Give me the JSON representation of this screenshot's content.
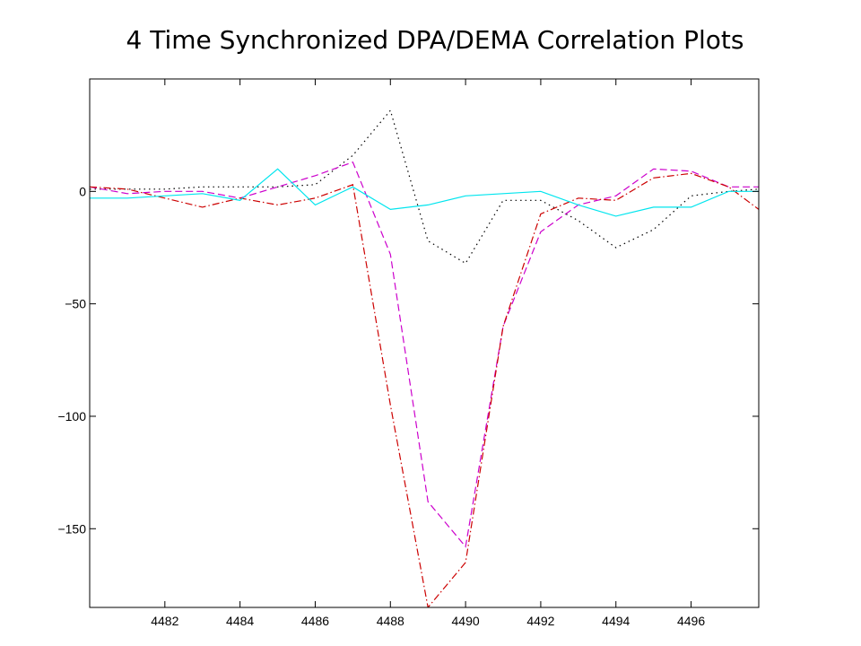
{
  "chart_data": {
    "type": "line",
    "title": "4 Time Synchronized DPA/DEMA Correlation  Plots",
    "xlabel": "",
    "ylabel": "",
    "xlim": [
      4480,
      4497.8
    ],
    "ylim": [
      -185,
      50
    ],
    "x_ticks": [
      4482,
      4484,
      4486,
      4488,
      4490,
      4492,
      4494,
      4496
    ],
    "x_tick_labels": [
      "4482",
      "4484",
      "4486",
      "4488",
      "4490",
      "4492",
      "4494",
      "4496"
    ],
    "y_ticks": [
      0,
      -50,
      -100,
      -150
    ],
    "y_tick_labels": [
      "0",
      "−50",
      "−100",
      "−150"
    ],
    "grid": false,
    "x": [
      4480,
      4481,
      4482,
      4483,
      4484,
      4485,
      4486,
      4487,
      4488,
      4489,
      4490,
      4491,
      4492,
      4493,
      4494,
      4495,
      4496,
      4497,
      4497.8
    ],
    "series": [
      {
        "color": "#000000",
        "style": "dotted",
        "values": [
          1,
          1,
          1,
          2,
          2,
          2,
          3,
          16,
          36,
          -22,
          -32,
          -4,
          -4,
          -13,
          -25,
          -17,
          -2,
          0,
          1
        ]
      },
      {
        "color": "#cc00cc",
        "style": "dashed",
        "values": [
          2,
          -1,
          0,
          0,
          -3,
          2,
          7,
          13,
          -28,
          -138,
          -158,
          -60,
          -18,
          -6,
          -2,
          10,
          9,
          2,
          2
        ]
      },
      {
        "color": "#cc0000",
        "style": "dashdot",
        "values": [
          2,
          1,
          -3,
          -7,
          -3,
          -6,
          -3,
          3,
          -95,
          -185,
          -165,
          -60,
          -10,
          -3,
          -4,
          6,
          8,
          2,
          -8
        ]
      },
      {
        "color": "#00e5ee",
        "style": "solid",
        "values": [
          -3,
          -3,
          -2,
          -1,
          -4,
          10,
          -6,
          2,
          -8,
          -6,
          -2,
          -1,
          0,
          -6,
          -11,
          -7,
          -7,
          0,
          0
        ]
      }
    ]
  }
}
